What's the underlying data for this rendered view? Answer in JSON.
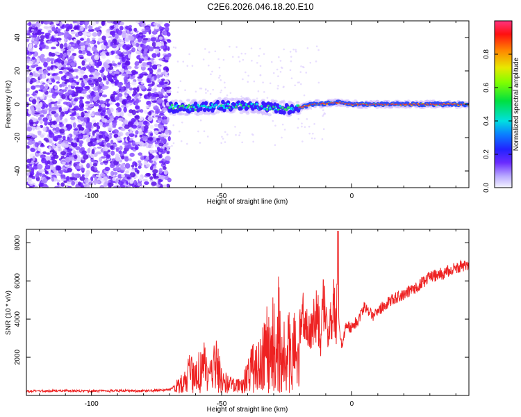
{
  "title": "C2E6.2026.046.18.20.E10",
  "chart_data": [
    {
      "type": "heatmap",
      "name": "spectrogram",
      "xlabel": "Height of straight line (km)",
      "ylabel": "Frequency (Hz)",
      "xlim": [
        -125,
        45
      ],
      "ylim": [
        -50,
        50
      ],
      "x_ticks": [
        -100,
        -50,
        0
      ],
      "y_ticks": [
        -40,
        -20,
        0,
        20,
        40
      ],
      "noise_region_x": [
        -125,
        -70
      ],
      "signal_trace": [
        {
          "x": -70,
          "y": -2
        },
        {
          "x": -60,
          "y": -2
        },
        {
          "x": -50,
          "y": -1
        },
        {
          "x": -40,
          "y": -1
        },
        {
          "x": -30,
          "y": -2
        },
        {
          "x": -25,
          "y": -3
        },
        {
          "x": -20,
          "y": -2
        },
        {
          "x": -15,
          "y": 0
        },
        {
          "x": -5,
          "y": 1
        },
        {
          "x": 0,
          "y": 0
        },
        {
          "x": 20,
          "y": 0
        },
        {
          "x": 45,
          "y": 0
        }
      ],
      "colorbar": {
        "label": "Normalized spectral amplitude",
        "range": [
          0,
          1
        ],
        "ticks": [
          "0.0",
          "0.2",
          "0.4",
          "0.6",
          "0.8"
        ],
        "tick_values": [
          0.0,
          0.2,
          0.4,
          0.6,
          0.8
        ]
      }
    },
    {
      "type": "line",
      "name": "snr",
      "xlabel": "Height of straight line (km)",
      "ylabel": "SNR (10 * v/v)",
      "xlim": [
        -125,
        45
      ],
      "ylim": [
        0,
        8700
      ],
      "x_ticks": [
        -100,
        -50,
        0
      ],
      "y_ticks": [
        2000,
        4000,
        6000,
        8000
      ],
      "color": "#ee2222",
      "series": [
        {
          "name": "SNR",
          "x": [
            -125,
            -110,
            -100,
            -90,
            -80,
            -70,
            -68,
            -65,
            -62,
            -60,
            -57,
            -55,
            -52,
            -50,
            -48,
            -45,
            -42,
            -40,
            -38,
            -35,
            -33,
            -31,
            -30,
            -29,
            -28,
            -27,
            -26,
            -25,
            -24,
            -23,
            -22,
            -21,
            -20,
            -18,
            -16,
            -15,
            -14,
            -13,
            -12,
            -11,
            -10,
            -9,
            -8,
            -7,
            -6,
            -5.5,
            -5,
            -4.5,
            -4,
            -3,
            -2,
            0,
            3,
            5,
            8,
            10,
            15,
            20,
            25,
            30,
            35,
            40,
            45
          ],
          "y": [
            220,
            250,
            220,
            250,
            230,
            300,
            500,
            900,
            1800,
            1400,
            2400,
            1200,
            2600,
            1100,
            900,
            600,
            700,
            1500,
            2200,
            2800,
            4000,
            3200,
            5200,
            3000,
            6200,
            2800,
            3500,
            2500,
            4500,
            3200,
            4000,
            2000,
            3500,
            4300,
            3000,
            3800,
            4200,
            4000,
            2900,
            4800,
            4000,
            3300,
            4200,
            5000,
            3300,
            8600,
            4000,
            3400,
            2600,
            3200,
            3700,
            3500,
            4100,
            4700,
            4200,
            4400,
            5000,
            5300,
            5700,
            6200,
            6400,
            6700,
            6800
          ]
        }
      ]
    }
  ]
}
